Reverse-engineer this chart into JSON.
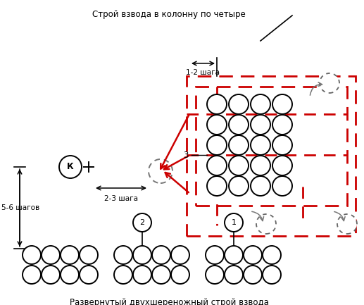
{
  "title_top": "Строй взвода в колонну по четыре",
  "title_bottom": "Развернутый двухшереножный строй взвода",
  "label_12_shaga": "1-2 шага",
  "label_23_shaga": "2-3 шага",
  "label_56_shagov": "5-6 шагов",
  "label_K": "К",
  "label_3": "3",
  "label_2": "2",
  "label_1": "1",
  "bg_color": "#ffffff",
  "circle_color": "#000000",
  "dashed_rect_color": "#cc0000",
  "text_color": "#000000"
}
